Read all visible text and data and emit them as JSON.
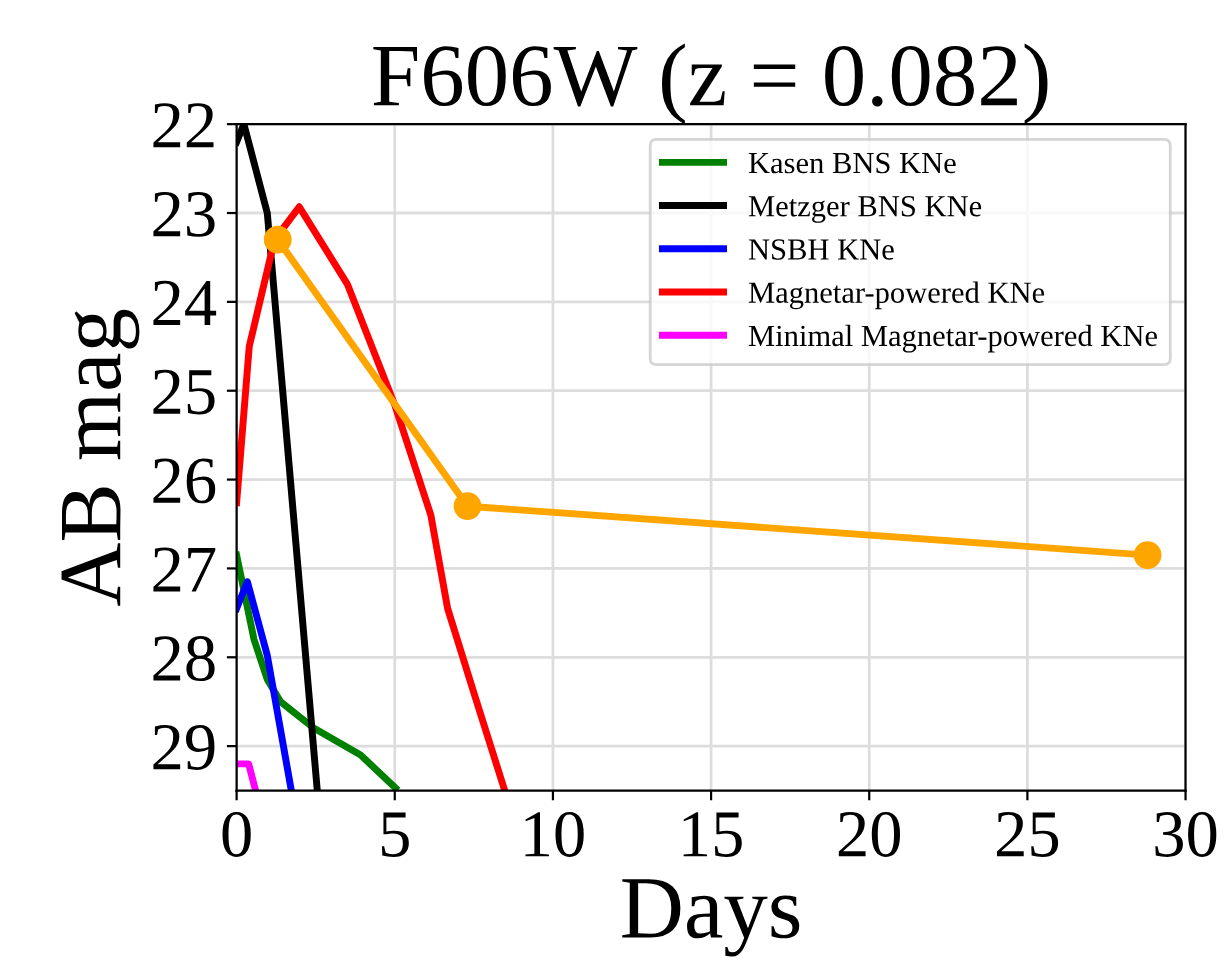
{
  "chart_data": {
    "type": "line",
    "title": "F606W (z = 0.082)",
    "xlabel": "Days",
    "ylabel": "AB mag",
    "xlim": [
      0,
      30
    ],
    "xticks": [
      0,
      5,
      10,
      15,
      20,
      25,
      30
    ],
    "ylim": [
      29.5,
      22
    ],
    "yticks": [
      22,
      23,
      24,
      25,
      26,
      27,
      28,
      29
    ],
    "grid": true,
    "legend": "top right",
    "marker": "none",
    "series": [
      {
        "name": "Kasen BNS KNe",
        "color": "#008000",
        "x": [
          0,
          0.55,
          0.97,
          1.39,
          2.45,
          3.92,
          5.02
        ],
        "values": [
          26.85,
          27.8,
          28.25,
          28.5,
          28.8,
          29.1,
          29.47
        ]
      },
      {
        "name": "Metzger BNS KNe",
        "color": "#000000",
        "x": [
          0,
          0.23,
          0.97,
          2.55
        ],
        "values": [
          22.2,
          22.0,
          23.0,
          29.5
        ]
      },
      {
        "name": "NSBH KNe",
        "color": "#0000ff",
        "x": [
          0,
          0.34,
          0.97,
          1.73
        ],
        "values": [
          27.45,
          27.15,
          27.98,
          29.5
        ]
      },
      {
        "name": "Magnetar-powered KNe",
        "color": "#ff0000",
        "x": [
          0,
          0.4,
          1.2,
          1.98,
          3.5,
          5.0,
          6.14,
          6.67,
          7.5,
          8.45
        ],
        "values": [
          26.26,
          24.5,
          23.3,
          22.93,
          23.8,
          25.16,
          26.4,
          27.45,
          28.4,
          29.47
        ]
      },
      {
        "name": "Minimal Magnetar-powered KNe",
        "color": "#ff00ff",
        "x": [
          0.08,
          0.38,
          0.6
        ],
        "values": [
          29.2,
          29.2,
          29.5
        ]
      },
      {
        "color": "#ffa500",
        "marker": "circle",
        "x": [
          1.3,
          7.3,
          28.8
        ],
        "values": [
          23.3,
          26.3,
          26.85
        ]
      }
    ]
  }
}
